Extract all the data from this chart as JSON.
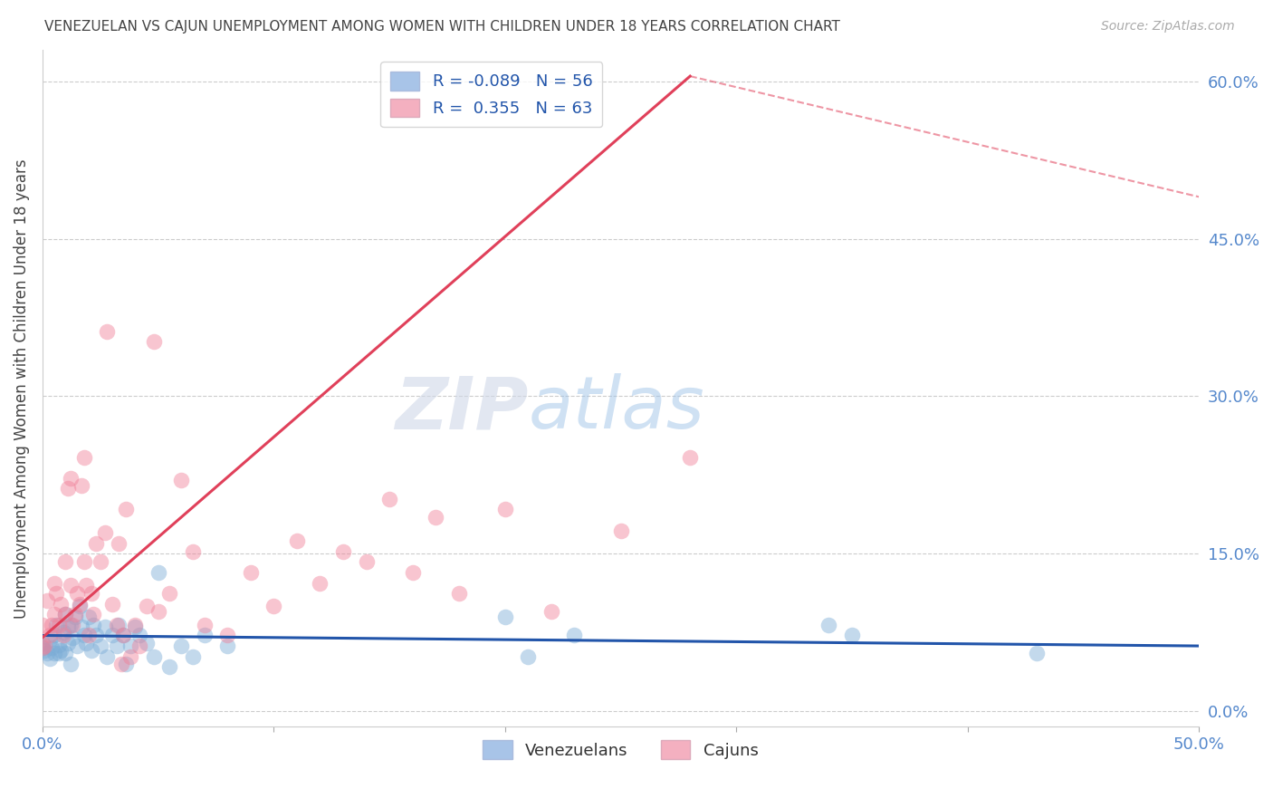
{
  "title": "VENEZUELAN VS CAJUN UNEMPLOYMENT AMONG WOMEN WITH CHILDREN UNDER 18 YEARS CORRELATION CHART",
  "source": "Source: ZipAtlas.com",
  "ylabel": "Unemployment Among Women with Children Under 18 years",
  "xlim": [
    0.0,
    0.5
  ],
  "ylim": [
    -0.015,
    0.63
  ],
  "xtick_vals": [
    0.0,
    0.1,
    0.2,
    0.3,
    0.4,
    0.5
  ],
  "xticklabels": [
    "0.0%",
    "",
    "",
    "",
    "",
    "50.0%"
  ],
  "ytick_vals": [
    0.0,
    0.15,
    0.3,
    0.45,
    0.6
  ],
  "yticklabels_right": [
    "0.0%",
    "15.0%",
    "30.0%",
    "45.0%",
    "60.0%"
  ],
  "venezuelan_color": "#7aacd6",
  "cajun_color": "#f08098",
  "trend_venezuelan_color": "#2255aa",
  "trend_cajun_solid_color": "#e0405a",
  "trend_cajun_dash_color": "#e0405a",
  "background_color": "#ffffff",
  "grid_color": "#cccccc",
  "title_color": "#444444",
  "axis_color": "#5588cc",
  "watermark": "ZIPatlas",
  "venezuelan_scatter_x": [
    0.0,
    0.0,
    0.001,
    0.002,
    0.003,
    0.003,
    0.004,
    0.005,
    0.005,
    0.006,
    0.007,
    0.007,
    0.008,
    0.009,
    0.01,
    0.01,
    0.011,
    0.011,
    0.012,
    0.012,
    0.013,
    0.014,
    0.015,
    0.016,
    0.017,
    0.018,
    0.019,
    0.02,
    0.021,
    0.022,
    0.023,
    0.025,
    0.027,
    0.028,
    0.03,
    0.032,
    0.033,
    0.035,
    0.036,
    0.038,
    0.04,
    0.042,
    0.045,
    0.048,
    0.05,
    0.055,
    0.06,
    0.065,
    0.07,
    0.08,
    0.2,
    0.21,
    0.23,
    0.34,
    0.35,
    0.43
  ],
  "venezuelan_scatter_y": [
    0.06,
    0.065,
    0.058,
    0.055,
    0.05,
    0.068,
    0.06,
    0.055,
    0.072,
    0.082,
    0.063,
    0.055,
    0.058,
    0.075,
    0.092,
    0.055,
    0.065,
    0.08,
    0.082,
    0.045,
    0.07,
    0.09,
    0.062,
    0.1,
    0.08,
    0.072,
    0.065,
    0.09,
    0.058,
    0.082,
    0.072,
    0.062,
    0.08,
    0.052,
    0.072,
    0.062,
    0.082,
    0.072,
    0.045,
    0.062,
    0.08,
    0.072,
    0.065,
    0.052,
    0.132,
    0.042,
    0.062,
    0.052,
    0.072,
    0.062,
    0.09,
    0.052,
    0.072,
    0.082,
    0.072,
    0.055
  ],
  "cajun_scatter_x": [
    0.0,
    0.0,
    0.001,
    0.002,
    0.003,
    0.004,
    0.005,
    0.005,
    0.006,
    0.007,
    0.008,
    0.009,
    0.01,
    0.01,
    0.011,
    0.012,
    0.012,
    0.013,
    0.014,
    0.015,
    0.016,
    0.017,
    0.018,
    0.018,
    0.019,
    0.02,
    0.021,
    0.022,
    0.023,
    0.025,
    0.027,
    0.028,
    0.03,
    0.032,
    0.033,
    0.034,
    0.035,
    0.036,
    0.038,
    0.04,
    0.042,
    0.045,
    0.048,
    0.05,
    0.055,
    0.06,
    0.065,
    0.07,
    0.08,
    0.09,
    0.1,
    0.11,
    0.12,
    0.13,
    0.14,
    0.15,
    0.16,
    0.17,
    0.18,
    0.2,
    0.22,
    0.25,
    0.28
  ],
  "cajun_scatter_y": [
    0.06,
    0.082,
    0.062,
    0.105,
    0.072,
    0.082,
    0.122,
    0.092,
    0.112,
    0.082,
    0.102,
    0.072,
    0.142,
    0.092,
    0.212,
    0.222,
    0.12,
    0.082,
    0.092,
    0.112,
    0.102,
    0.215,
    0.242,
    0.142,
    0.12,
    0.072,
    0.112,
    0.092,
    0.16,
    0.142,
    0.17,
    0.362,
    0.102,
    0.082,
    0.16,
    0.045,
    0.072,
    0.192,
    0.052,
    0.082,
    0.062,
    0.1,
    0.352,
    0.095,
    0.112,
    0.22,
    0.152,
    0.082,
    0.072,
    0.132,
    0.1,
    0.162,
    0.122,
    0.152,
    0.142,
    0.202,
    0.132,
    0.185,
    0.112,
    0.192,
    0.095,
    0.172,
    0.242
  ],
  "trend_ven_x0": 0.0,
  "trend_ven_x1": 0.5,
  "trend_ven_y0": 0.072,
  "trend_ven_y1": 0.062,
  "trend_caj_solid_x0": 0.0,
  "trend_caj_solid_x1": 0.28,
  "trend_caj_solid_y0": 0.07,
  "trend_caj_solid_y1": 0.605,
  "trend_caj_dash_x0": 0.28,
  "trend_caj_dash_x1": 0.5,
  "trend_caj_dash_y0": 0.605,
  "trend_caj_dash_y1": 0.49
}
